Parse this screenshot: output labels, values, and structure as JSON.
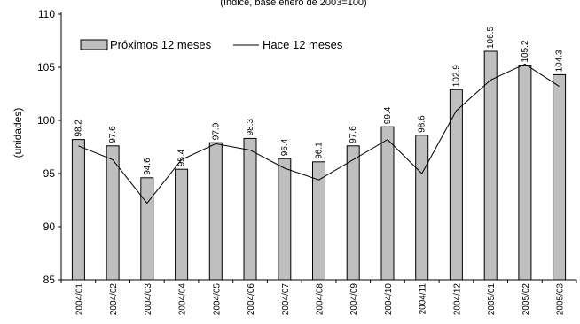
{
  "chart_data": {
    "type": "bar",
    "title": "(Índice, base enero de 2003=100)",
    "ylabel": "(unidades)",
    "xlabel": "",
    "ylim": [
      85,
      110
    ],
    "yticks": [
      85,
      90,
      95,
      100,
      105,
      110
    ],
    "grid": false,
    "legend_position": "top-left",
    "categories": [
      "2004/01",
      "2004/02",
      "2004/03",
      "2004/04",
      "2004/05",
      "2004/06",
      "2004/07",
      "2004/08",
      "2004/09",
      "2004/10",
      "2004/11",
      "2004/12",
      "2005/01",
      "2005/02",
      "2005/03"
    ],
    "series": [
      {
        "name": "Próximos 12 meses",
        "kind": "bar",
        "color": "#bfbfbf",
        "values": [
          98.2,
          97.6,
          94.6,
          95.4,
          97.9,
          98.3,
          96.4,
          96.1,
          97.6,
          99.4,
          98.6,
          102.9,
          106.5,
          105.2,
          104.3
        ],
        "labels": [
          "98.2",
          "97.6",
          "94.6",
          "95.4",
          "97.9",
          "98.3",
          "96.4",
          "96.1",
          "97.6",
          "99.4",
          "98.6",
          "102.9",
          "106.5",
          "105.2",
          "104.3"
        ]
      },
      {
        "name": "Hace 12 meses",
        "kind": "line",
        "color": "#000000",
        "values": [
          97.6,
          96.3,
          92.2,
          96.3,
          97.8,
          97.2,
          95.5,
          94.4,
          96.3,
          98.2,
          95.0,
          100.9,
          103.8,
          105.3,
          103.2
        ]
      }
    ]
  }
}
